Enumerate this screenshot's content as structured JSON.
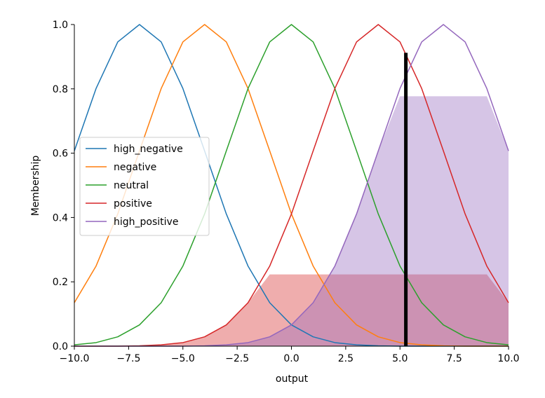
{
  "chart_data": {
    "type": "line",
    "xlabel": "output",
    "ylabel": "Membership",
    "xlim": [
      -10,
      10
    ],
    "ylim": [
      0,
      1
    ],
    "x_ticks": [
      -10.0,
      -7.5,
      -5.0,
      -2.5,
      0.0,
      2.5,
      5.0,
      7.5,
      10.0
    ],
    "x_tick_labels": [
      "−10.0",
      "−7.5",
      "−5.0",
      "−2.5",
      "0.0",
      "2.5",
      "5.0",
      "7.5",
      "10.0"
    ],
    "y_ticks": [
      0.0,
      0.2,
      0.4,
      0.6,
      0.8,
      1.0
    ],
    "y_tick_labels": [
      "0.0",
      "0.2",
      "0.4",
      "0.6",
      "0.8",
      "1.0"
    ],
    "grid": false,
    "legend": "center-left",
    "x": [
      -10,
      -9,
      -8,
      -7,
      -6,
      -5,
      -4,
      -3,
      -2,
      -1,
      0,
      1,
      2,
      3,
      4,
      5,
      6,
      7,
      8,
      9,
      10
    ],
    "series": [
      {
        "name": "high_negative",
        "color": "#1f77b4",
        "values": [
          0.607,
          0.801,
          0.946,
          1.0,
          0.946,
          0.801,
          0.607,
          0.411,
          0.249,
          0.135,
          0.066,
          0.029,
          0.011,
          0.004,
          0.001,
          0.0,
          0.0,
          0.0,
          0.0,
          0.0,
          0.0
        ]
      },
      {
        "name": "negative",
        "color": "#ff7f0e",
        "values": [
          0.135,
          0.249,
          0.411,
          0.607,
          0.801,
          0.946,
          1.0,
          0.946,
          0.801,
          0.607,
          0.411,
          0.249,
          0.135,
          0.066,
          0.029,
          0.011,
          0.004,
          0.001,
          0.0,
          0.0,
          0.0
        ]
      },
      {
        "name": "neutral",
        "color": "#2ca02c",
        "values": [
          0.004,
          0.011,
          0.029,
          0.066,
          0.135,
          0.249,
          0.411,
          0.607,
          0.801,
          0.946,
          1.0,
          0.946,
          0.801,
          0.607,
          0.411,
          0.249,
          0.135,
          0.066,
          0.029,
          0.011,
          0.004
        ]
      },
      {
        "name": "positive",
        "color": "#d62728",
        "values": [
          0.0,
          0.0,
          0.0,
          0.001,
          0.004,
          0.011,
          0.029,
          0.066,
          0.135,
          0.249,
          0.411,
          0.607,
          0.801,
          0.946,
          1.0,
          0.946,
          0.801,
          0.607,
          0.411,
          0.249,
          0.135
        ]
      },
      {
        "name": "high_positive",
        "color": "#9467bd",
        "values": [
          0.0,
          0.0,
          0.0,
          0.0,
          0.0,
          0.0,
          0.001,
          0.004,
          0.011,
          0.029,
          0.066,
          0.135,
          0.249,
          0.411,
          0.607,
          0.801,
          0.946,
          1.0,
          0.946,
          0.801,
          0.607
        ]
      }
    ],
    "activations": [
      {
        "series": "positive",
        "level": 0.223,
        "color": "#d62728",
        "opacity": 0.38
      },
      {
        "series": "high_positive",
        "level": 0.777,
        "color": "#9467bd",
        "opacity": 0.38
      }
    ],
    "crisp_output": {
      "x": 5.27,
      "height": 0.912,
      "color": "#000000"
    }
  }
}
